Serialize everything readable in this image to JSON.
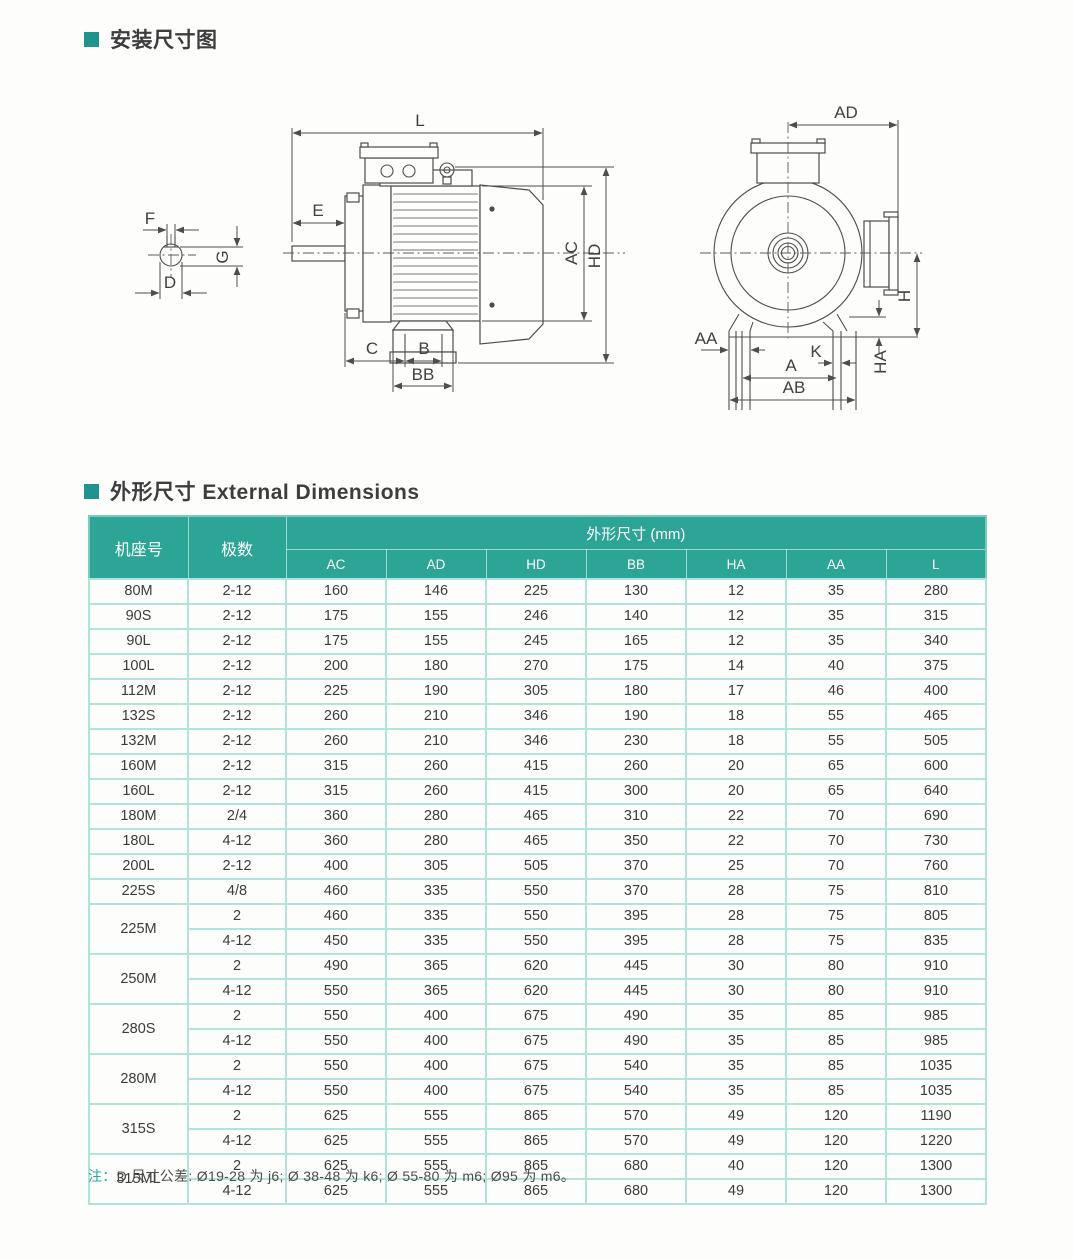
{
  "page": {
    "headings": {
      "installation": "安装尺寸图",
      "dimensions": "外形尺寸 External Dimensions"
    },
    "note": {
      "prefix": "注：",
      "text": "D 尺寸公差: Ø19-28 为 j6; Ø 38-48 为 k6; Ø 55-80 为 m6; Ø95 为 m6。"
    }
  },
  "colors": {
    "accent_teal": "#2ca597",
    "heading_bullet": "#1f938c",
    "table_grid": "#b2e2d9",
    "table_outer_border": "#7ccabb",
    "drawing_line": "#4d4d4d"
  },
  "diagram": {
    "shaft_labels": {
      "f": "F",
      "g": "G",
      "d": "D"
    },
    "side_labels": {
      "l": "L",
      "e": "E",
      "ac": "AC",
      "hd": "HD",
      "c": "C",
      "b": "B",
      "bb": "BB"
    },
    "end_labels": {
      "ad": "AD",
      "aa": "AA",
      "k": "K",
      "a": "A",
      "ab": "AB",
      "h": "H",
      "ha": "HA"
    }
  },
  "table": {
    "col_frame": "机座号",
    "col_poles": "极数",
    "col_group": "外形尺寸 (mm)",
    "dim_columns": [
      "AC",
      "AD",
      "HD",
      "BB",
      "HA",
      "AA",
      "L"
    ],
    "rows": [
      {
        "frame": "80M",
        "span": 1,
        "poles": "2-12",
        "dims": [
          "160",
          "146",
          "225",
          "130",
          "12",
          "35",
          "280"
        ]
      },
      {
        "frame": "90S",
        "span": 1,
        "poles": "2-12",
        "dims": [
          "175",
          "155",
          "246",
          "140",
          "12",
          "35",
          "315"
        ]
      },
      {
        "frame": "90L",
        "span": 1,
        "poles": "2-12",
        "dims": [
          "175",
          "155",
          "245",
          "165",
          "12",
          "35",
          "340"
        ]
      },
      {
        "frame": "100L",
        "span": 1,
        "poles": "2-12",
        "dims": [
          "200",
          "180",
          "270",
          "175",
          "14",
          "40",
          "375"
        ]
      },
      {
        "frame": "112M",
        "span": 1,
        "poles": "2-12",
        "dims": [
          "225",
          "190",
          "305",
          "180",
          "17",
          "46",
          "400"
        ]
      },
      {
        "frame": "132S",
        "span": 1,
        "poles": "2-12",
        "dims": [
          "260",
          "210",
          "346",
          "190",
          "18",
          "55",
          "465"
        ]
      },
      {
        "frame": "132M",
        "span": 1,
        "poles": "2-12",
        "dims": [
          "260",
          "210",
          "346",
          "230",
          "18",
          "55",
          "505"
        ]
      },
      {
        "frame": "160M",
        "span": 1,
        "poles": "2-12",
        "dims": [
          "315",
          "260",
          "415",
          "260",
          "20",
          "65",
          "600"
        ]
      },
      {
        "frame": "160L",
        "span": 1,
        "poles": "2-12",
        "dims": [
          "315",
          "260",
          "415",
          "300",
          "20",
          "65",
          "640"
        ]
      },
      {
        "frame": "180M",
        "span": 1,
        "poles": "2/4",
        "dims": [
          "360",
          "280",
          "465",
          "310",
          "22",
          "70",
          "690"
        ]
      },
      {
        "frame": "180L",
        "span": 1,
        "poles": "4-12",
        "dims": [
          "360",
          "280",
          "465",
          "350",
          "22",
          "70",
          "730"
        ]
      },
      {
        "frame": "200L",
        "span": 1,
        "poles": "2-12",
        "dims": [
          "400",
          "305",
          "505",
          "370",
          "25",
          "70",
          "760"
        ]
      },
      {
        "frame": "225S",
        "span": 1,
        "poles": "4/8",
        "dims": [
          "460",
          "335",
          "550",
          "370",
          "28",
          "75",
          "810"
        ]
      },
      {
        "frame": "225M",
        "span": 2,
        "poles": "2",
        "dims": [
          "460",
          "335",
          "550",
          "395",
          "28",
          "75",
          "805"
        ]
      },
      {
        "poles": "4-12",
        "dims": [
          "450",
          "335",
          "550",
          "395",
          "28",
          "75",
          "835"
        ]
      },
      {
        "frame": "250M",
        "span": 2,
        "poles": "2",
        "dims": [
          "490",
          "365",
          "620",
          "445",
          "30",
          "80",
          "910"
        ]
      },
      {
        "poles": "4-12",
        "dims": [
          "550",
          "365",
          "620",
          "445",
          "30",
          "80",
          "910"
        ]
      },
      {
        "frame": "280S",
        "span": 2,
        "poles": "2",
        "dims": [
          "550",
          "400",
          "675",
          "490",
          "35",
          "85",
          "985"
        ]
      },
      {
        "poles": "4-12",
        "dims": [
          "550",
          "400",
          "675",
          "490",
          "35",
          "85",
          "985"
        ]
      },
      {
        "frame": "280M",
        "span": 2,
        "poles": "2",
        "dims": [
          "550",
          "400",
          "675",
          "540",
          "35",
          "85",
          "1035"
        ]
      },
      {
        "poles": "4-12",
        "dims": [
          "550",
          "400",
          "675",
          "540",
          "35",
          "85",
          "1035"
        ]
      },
      {
        "frame": "315S",
        "span": 2,
        "poles": "2",
        "dims": [
          "625",
          "555",
          "865",
          "570",
          "49",
          "120",
          "1190"
        ]
      },
      {
        "poles": "4-12",
        "dims": [
          "625",
          "555",
          "865",
          "570",
          "49",
          "120",
          "1220"
        ]
      },
      {
        "frame": "315ML",
        "span": 2,
        "poles": "2",
        "dims": [
          "625",
          "555",
          "865",
          "680",
          "40",
          "120",
          "1300"
        ]
      },
      {
        "poles": "4-12",
        "dims": [
          "625",
          "555",
          "865",
          "680",
          "49",
          "120",
          "1300"
        ]
      }
    ]
  }
}
